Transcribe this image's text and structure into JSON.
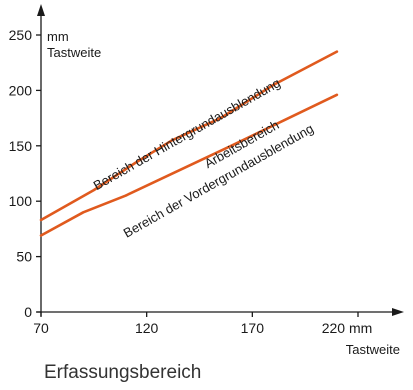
{
  "chart_data": {
    "type": "line",
    "xlabel": "Tastweite",
    "x_unit": "mm",
    "ylabel": "Tastweite",
    "y_unit": "mm",
    "xlim": [
      70,
      220
    ],
    "ylim": [
      0,
      250
    ],
    "xticks": [
      {
        "value": 70,
        "label": "70"
      },
      {
        "value": 120,
        "label": "120"
      },
      {
        "value": 170,
        "label": "170"
      },
      {
        "value": 220,
        "label": "220 mm"
      }
    ],
    "yticks": [
      {
        "value": 0,
        "label": "0"
      },
      {
        "value": 50,
        "label": "50"
      },
      {
        "value": 100,
        "label": "100"
      },
      {
        "value": 150,
        "label": "150"
      },
      {
        "value": 200,
        "label": "200"
      },
      {
        "value": 250,
        "label": "250"
      }
    ],
    "series": [
      {
        "color": "#e05a1e",
        "x": [
          70,
          95,
          115,
          132,
          155,
          180,
          210
        ],
        "y": [
          83,
          110,
          135,
          155,
          175,
          205,
          235
        ]
      },
      {
        "color": "#e05a1e",
        "x": [
          70,
          90,
          110,
          130,
          160,
          185,
          210
        ],
        "y": [
          69,
          90,
          105,
          123,
          150,
          173,
          196
        ]
      }
    ],
    "annotations": [
      {
        "text": "Bereich der Hintergrundausblendung",
        "x": 140,
        "y": 157
      },
      {
        "text": "Arbeitsbereich",
        "x": 166,
        "y": 148
      },
      {
        "text": "Bereich der Vordergrundausblendung",
        "x": 155,
        "y": 115
      }
    ],
    "grid": false,
    "legend": "none"
  },
  "caption": "Erfassungsbereich"
}
